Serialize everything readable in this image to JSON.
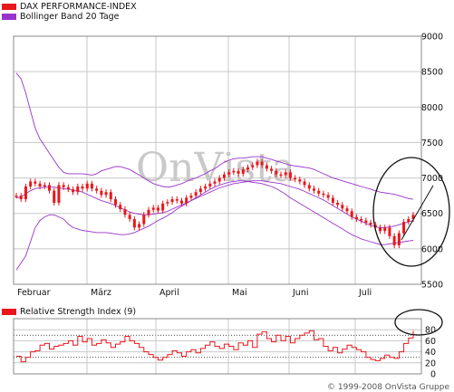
{
  "chart_data": [
    {
      "type": "line",
      "legend": [
        {
          "name": "DAX PERFORMANCE-INDEX",
          "color": "#e8171b"
        },
        {
          "name": "Bollinger Band 20 Tage",
          "color": "#9933cc"
        }
      ],
      "ylim": [
        5500,
        9000
      ],
      "yticks": [
        "9000",
        "8500",
        "8000",
        "7500",
        "7000",
        "6500",
        "6000",
        "5500"
      ],
      "xticks": [
        "Februar",
        "März",
        "April",
        "Mai",
        "Juni",
        "Juli"
      ],
      "grid": true,
      "series": [
        {
          "name": "DAX PERFORMANCE-INDEX",
          "color": "#e8171b",
          "values": [
            6750,
            6700,
            6880,
            6950,
            6920,
            6880,
            6900,
            6820,
            6650,
            6900,
            6870,
            6840,
            6800,
            6880,
            6850,
            6920,
            6850,
            6820,
            6760,
            6800,
            6700,
            6620,
            6560,
            6480,
            6420,
            6300,
            6350,
            6480,
            6550,
            6580,
            6540,
            6640,
            6660,
            6700,
            6680,
            6640,
            6720,
            6750,
            6800,
            6850,
            6880,
            6920,
            6950,
            7000,
            7050,
            7080,
            7100,
            7060,
            7120,
            7150,
            7180,
            7230,
            7180,
            7130,
            7100,
            7050,
            7040,
            7080,
            7000,
            6980,
            6950,
            6900,
            6850,
            6820,
            6780,
            6760,
            6720,
            6650,
            6620,
            6570,
            6530,
            6450,
            6420,
            6400,
            6370,
            6340,
            6300,
            6250,
            6300,
            6180,
            6050,
            6220,
            6380,
            6420,
            6480
          ]
        },
        {
          "name": "Bollinger Band 20 Tage",
          "color": "#9933cc",
          "values": [
            8480,
            8400,
            8200,
            7950,
            7700,
            7550,
            7450,
            7350,
            7250,
            7150,
            7080,
            7060,
            7060,
            7060,
            7060,
            7050,
            7040,
            7060,
            7100,
            7120,
            7140,
            7160,
            7160,
            7140,
            7120,
            7080,
            7040,
            7000,
            6960,
            6920,
            6900,
            6880,
            6870,
            6880,
            6900,
            6920,
            6950,
            6980,
            7000,
            7030,
            7060,
            7100,
            7130,
            7180,
            7220,
            7250,
            7270,
            7280,
            7280,
            7290,
            7300,
            7300,
            7300,
            7280,
            7260,
            7240,
            7220,
            7200,
            7180,
            7170,
            7160,
            7150,
            7140,
            7120,
            7090,
            7060,
            7030,
            7000,
            6980,
            6960,
            6940,
            6920,
            6900,
            6880,
            6860,
            6840,
            6820,
            6800,
            6790,
            6780,
            6770,
            6750,
            6730,
            6710,
            6700
          ]
        },
        {
          "name": "Bollinger Band 20 Tage",
          "color": "#9933cc",
          "values": [
            6720,
            6730,
            6780,
            6820,
            6850,
            6860,
            6870,
            6870,
            6870,
            6860,
            6850,
            6840,
            6830,
            6820,
            6800,
            6770,
            6740,
            6710,
            6680,
            6660,
            6640,
            6610,
            6580,
            6550,
            6520,
            6500,
            6490,
            6480,
            6480,
            6490,
            6500,
            6510,
            6530,
            6560,
            6590,
            6620,
            6650,
            6680,
            6710,
            6740,
            6770,
            6800,
            6830,
            6860,
            6880,
            6900,
            6920,
            6930,
            6940,
            6950,
            6960,
            6960,
            6960,
            6950,
            6940,
            6930,
            6920,
            6900,
            6880,
            6860,
            6840,
            6810,
            6780,
            6750,
            6720,
            6690,
            6650,
            6610,
            6570,
            6530,
            6490,
            6450,
            6420,
            6390,
            6360,
            6330,
            6310,
            6300,
            6300,
            6310,
            6320,
            6340,
            6360,
            6380,
            6400
          ]
        },
        {
          "name": "Bollinger Band 20 Tage",
          "color": "#9933cc",
          "values": [
            5700,
            5800,
            5900,
            6100,
            6300,
            6400,
            6450,
            6480,
            6480,
            6450,
            6420,
            6350,
            6300,
            6280,
            6260,
            6250,
            6240,
            6230,
            6230,
            6230,
            6220,
            6210,
            6200,
            6200,
            6210,
            6230,
            6260,
            6290,
            6320,
            6360,
            6400,
            6430,
            6470,
            6510,
            6560,
            6600,
            6640,
            6680,
            6720,
            6760,
            6800,
            6840,
            6870,
            6900,
            6920,
            6940,
            6950,
            6960,
            6960,
            6950,
            6940,
            6930,
            6920,
            6900,
            6880,
            6850,
            6810,
            6770,
            6720,
            6680,
            6640,
            6600,
            6560,
            6520,
            6480,
            6440,
            6400,
            6360,
            6320,
            6280,
            6240,
            6200,
            6170,
            6140,
            6120,
            6100,
            6080,
            6060,
            6060,
            6070,
            6080,
            6090,
            6100,
            6110,
            6120
          ]
        }
      ]
    },
    {
      "type": "line",
      "legend": [
        {
          "name": "Relative Strength Index (9)",
          "color": "#e8171b"
        }
      ],
      "ylim": [
        0,
        100
      ],
      "yticks": [
        "80",
        "60",
        "40",
        "20",
        "0"
      ],
      "grid": true,
      "series": [
        {
          "name": "Relative Strength Index (9)",
          "color": "#e8171b",
          "values": [
            32,
            22,
            30,
            40,
            42,
            52,
            55,
            45,
            50,
            52,
            55,
            60,
            52,
            68,
            58,
            64,
            52,
            55,
            62,
            56,
            48,
            54,
            58,
            68,
            60,
            55,
            48,
            40,
            35,
            30,
            25,
            30,
            35,
            42,
            38,
            32,
            40,
            44,
            38,
            46,
            52,
            58,
            50,
            46,
            54,
            50,
            44,
            56,
            52,
            60,
            48,
            72,
            76,
            64,
            58,
            70,
            60,
            68,
            56,
            64,
            70,
            74,
            78,
            62,
            64,
            50,
            42,
            48,
            38,
            45,
            52,
            48,
            44,
            40,
            30,
            26,
            24,
            28,
            34,
            30,
            28,
            40,
            55,
            65,
            78
          ]
        }
      ]
    }
  ],
  "copyright": "© 1999-2008 OnVista Gruppe",
  "watermark": "OnVista"
}
